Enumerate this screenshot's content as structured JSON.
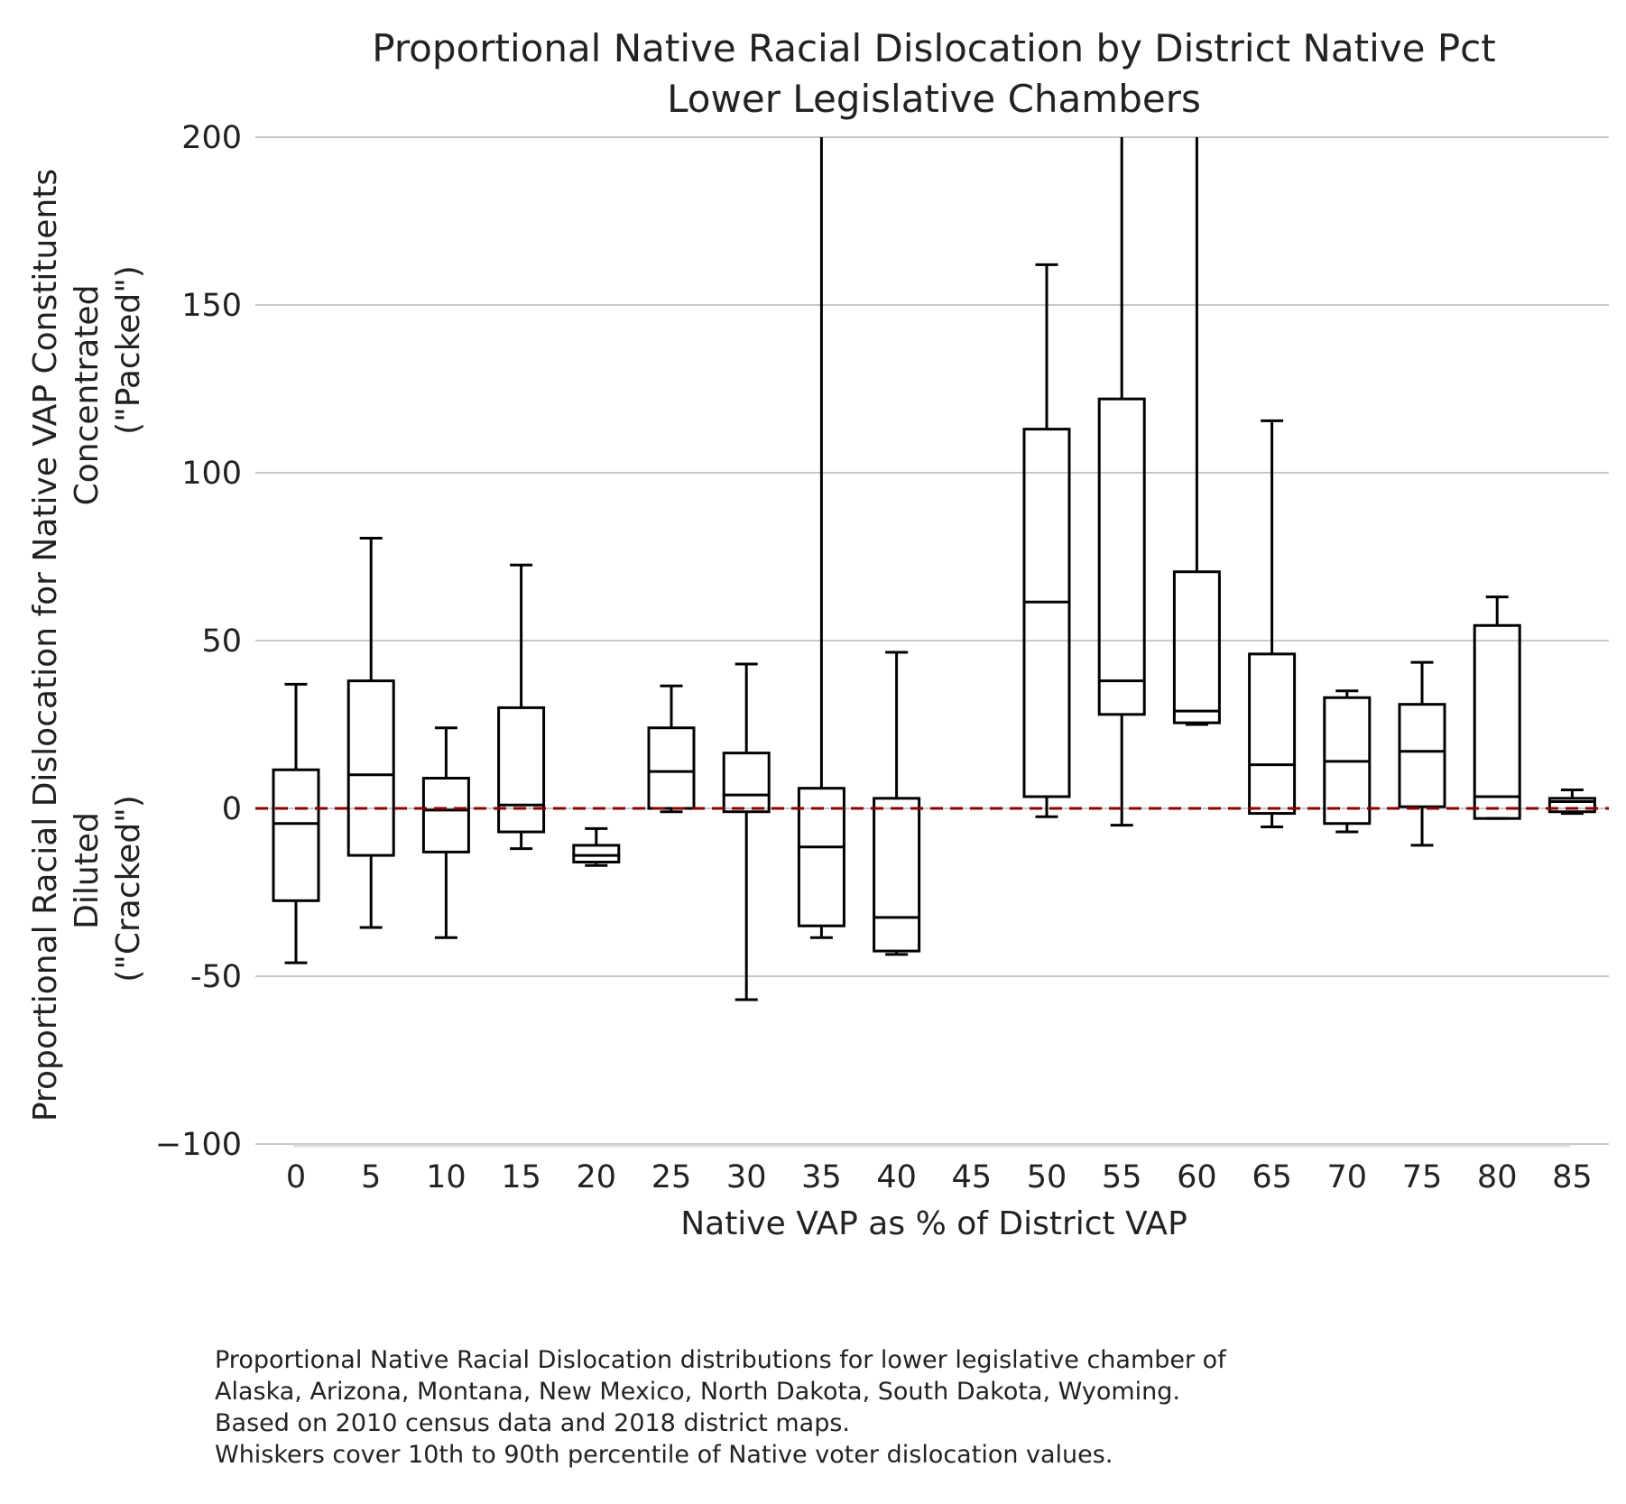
{
  "chart_data": {
    "type": "box",
    "title": [
      "Proportional Native Racial Dislocation by District Native Pct",
      "Lower Legislative Chambers"
    ],
    "xlabel": "Native VAP as % of District VAP",
    "ylabel": [
      "Proportional Racial Dislocation for Native VAP Constituents",
      "Concentrated",
      "(\"Packed\")",
      "Diluted",
      "(\"Cracked\")"
    ],
    "ylim": [
      -100,
      200
    ],
    "yticks": [
      -100,
      -50,
      0,
      50,
      100,
      150,
      200
    ],
    "ytick_labels": [
      "−100",
      "-50",
      "0",
      "50",
      "100",
      "150",
      "200"
    ],
    "categories": [
      "0",
      "5",
      "10",
      "15",
      "20",
      "25",
      "30",
      "35",
      "40",
      "45",
      "50",
      "55",
      "60",
      "65",
      "70",
      "75",
      "80",
      "85"
    ],
    "grid": "horizontal",
    "reference_line": {
      "y": 0,
      "style": "dashed",
      "color": "#8b0000"
    },
    "boxes": [
      {
        "x": "0",
        "p10": -46,
        "q1": -27.5,
        "median": -4.5,
        "q3": 11.5,
        "p90": 37
      },
      {
        "x": "5",
        "p10": -35.5,
        "q1": -14,
        "median": 10,
        "q3": 38,
        "p90": 80.5
      },
      {
        "x": "10",
        "p10": -38.5,
        "q1": -13,
        "median": -0.5,
        "q3": 9,
        "p90": 24
      },
      {
        "x": "15",
        "p10": -12,
        "q1": -7,
        "median": 1,
        "q3": 30,
        "p90": 72.5
      },
      {
        "x": "20",
        "p10": -17,
        "q1": -16,
        "median": -14,
        "q3": -11,
        "p90": -6
      },
      {
        "x": "25",
        "p10": -1,
        "q1": 0,
        "median": 11,
        "q3": 24,
        "p90": 36.5
      },
      {
        "x": "30",
        "p10": -57,
        "q1": -1,
        "median": 4,
        "q3": 16.5,
        "p90": 43
      },
      {
        "x": "35",
        "p10": -38.5,
        "q1": -35,
        "median": -11.5,
        "q3": 6,
        "p90": 200
      },
      {
        "x": "40",
        "p10": -43.5,
        "q1": -42.5,
        "median": -32.5,
        "q3": 3,
        "p90": 46.5
      },
      {
        "x": "50",
        "p10": -2.5,
        "q1": 3.5,
        "median": 61.5,
        "q3": 113,
        "p90": 162
      },
      {
        "x": "55",
        "p10": -5,
        "q1": 28,
        "median": 38,
        "q3": 122,
        "p90": 200
      },
      {
        "x": "60",
        "p10": 25,
        "q1": 25.5,
        "median": 29,
        "q3": 70.5,
        "p90": 200
      },
      {
        "x": "65",
        "p10": -5.5,
        "q1": -1.5,
        "median": 13,
        "q3": 46,
        "p90": 115.5
      },
      {
        "x": "70",
        "p10": -7,
        "q1": -4.5,
        "median": 14,
        "q3": 33,
        "p90": 35
      },
      {
        "x": "75",
        "p10": -11,
        "q1": 0.5,
        "median": 17,
        "q3": 31,
        "p90": 43.5
      },
      {
        "x": "80",
        "p10": -3,
        "q1": -3,
        "median": 3.5,
        "q3": 54.5,
        "p90": 63
      },
      {
        "x": "85",
        "p10": -1.5,
        "q1": -1,
        "median": 2,
        "q3": 3,
        "p90": 5.5
      }
    ]
  },
  "caption": [
    "Proportional Native Racial Dislocation distributions for lower legislative chamber of",
    "Alaska, Arizona, Montana, New Mexico, North Dakota, South Dakota, Wyoming.",
    "Based on 2010 census data and 2018 district maps.",
    "Whiskers cover 10th to 90th percentile of Native voter dislocation values."
  ]
}
